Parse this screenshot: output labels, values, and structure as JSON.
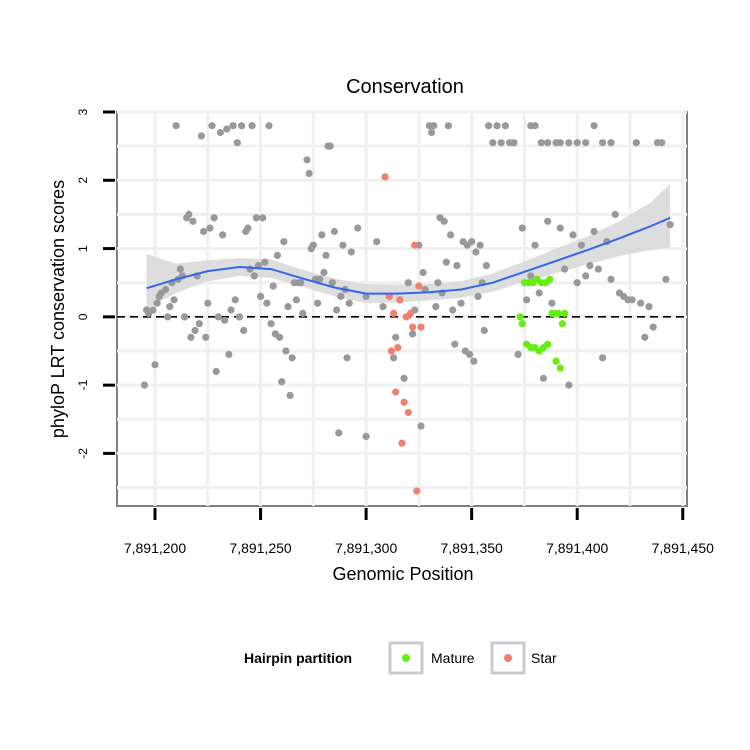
{
  "chart_data": {
    "type": "scatter",
    "title": "Conservation",
    "xlabel": "Genomic Position",
    "ylabel": "phyloP LRT conservation scores",
    "xlim": [
      7891182,
      7891452
    ],
    "ylim": [
      -2.77,
      3.0
    ],
    "x_ticks": [
      7891200,
      7891250,
      7891300,
      7891350,
      7891400,
      7891450
    ],
    "x_tick_labels": [
      "7,891,200",
      "7,891,250",
      "7,891,300",
      "7,891,350",
      "7,891,400",
      "7,891,450"
    ],
    "y_ticks": [
      -2,
      -1,
      0,
      1,
      2,
      3
    ],
    "y_tick_labels": [
      "-2",
      "-1",
      "0",
      "1",
      "2",
      "3"
    ],
    "reference_line": 0,
    "grid": true,
    "legend": {
      "title": "Hairpin partition",
      "placement": "bottom",
      "entries": [
        {
          "label": "Mature",
          "color": "#66ee11"
        },
        {
          "label": "Star",
          "color": "#f08070"
        }
      ]
    },
    "colors": {
      "other": "#999999",
      "mature": "#66ee11",
      "star": "#f08070",
      "smooth": "#3366ee",
      "band": "#d9d9d9"
    },
    "smooth": {
      "x": [
        7891196,
        7891210,
        7891225,
        7891240,
        7891255,
        7891270,
        7891285,
        7891300,
        7891315,
        7891330,
        7891345,
        7891360,
        7891375,
        7891390,
        7891405,
        7891420,
        7891435,
        7891444
      ],
      "y": [
        0.42,
        0.55,
        0.67,
        0.73,
        0.7,
        0.56,
        0.43,
        0.34,
        0.34,
        0.36,
        0.4,
        0.5,
        0.66,
        0.82,
        0.98,
        1.15,
        1.33,
        1.45
      ],
      "lower": [
        0.12,
        0.35,
        0.52,
        0.6,
        0.57,
        0.44,
        0.3,
        0.2,
        0.21,
        0.24,
        0.28,
        0.37,
        0.51,
        0.64,
        0.77,
        0.89,
        0.98,
        1.02
      ],
      "upper": [
        0.92,
        0.78,
        0.83,
        0.86,
        0.84,
        0.69,
        0.56,
        0.48,
        0.47,
        0.48,
        0.52,
        0.64,
        0.81,
        1.0,
        1.18,
        1.4,
        1.68,
        1.95
      ]
    },
    "series": [
      {
        "name": "Other",
        "points": [
          [
            7891195,
            -1.0
          ],
          [
            7891196,
            0.1
          ],
          [
            7891197,
            0.05
          ],
          [
            7891199,
            0.1
          ],
          [
            7891200,
            -0.7
          ],
          [
            7891201,
            0.2
          ],
          [
            7891202,
            0.3
          ],
          [
            7891203,
            0.35
          ],
          [
            7891205,
            0.4
          ],
          [
            7891206,
            0.0
          ],
          [
            7891207,
            0.15
          ],
          [
            7891208,
            0.5
          ],
          [
            7891209,
            0.25
          ],
          [
            7891210,
            2.8
          ],
          [
            7891211,
            0.55
          ],
          [
            7891212,
            0.7
          ],
          [
            7891213,
            0.6
          ],
          [
            7891214,
            0.0
          ],
          [
            7891215,
            1.45
          ],
          [
            7891216,
            1.5
          ],
          [
            7891217,
            -0.3
          ],
          [
            7891218,
            1.4
          ],
          [
            7891219,
            -0.2
          ],
          [
            7891220,
            0.6
          ],
          [
            7891221,
            -0.1
          ],
          [
            7891222,
            2.65
          ],
          [
            7891223,
            1.25
          ],
          [
            7891224,
            -0.3
          ],
          [
            7891225,
            0.2
          ],
          [
            7891226,
            1.3
          ],
          [
            7891227,
            2.8
          ],
          [
            7891228,
            1.45
          ],
          [
            7891229,
            -0.8
          ],
          [
            7891230,
            0.0
          ],
          [
            7891231,
            2.7
          ],
          [
            7891232,
            1.2
          ],
          [
            7891233,
            -0.05
          ],
          [
            7891234,
            2.75
          ],
          [
            7891235,
            -0.55
          ],
          [
            7891236,
            0.1
          ],
          [
            7891237,
            2.8
          ],
          [
            7891238,
            0.25
          ],
          [
            7891239,
            2.55
          ],
          [
            7891240,
            0.0
          ],
          [
            7891241,
            2.8
          ],
          [
            7891242,
            -0.2
          ],
          [
            7891243,
            1.25
          ],
          [
            7891244,
            1.3
          ],
          [
            7891245,
            0.7
          ],
          [
            7891246,
            2.8
          ],
          [
            7891247,
            0.6
          ],
          [
            7891248,
            1.45
          ],
          [
            7891249,
            0.75
          ],
          [
            7891250,
            0.3
          ],
          [
            7891251,
            1.45
          ],
          [
            7891252,
            0.8
          ],
          [
            7891253,
            0.2
          ],
          [
            7891254,
            2.8
          ],
          [
            7891255,
            -0.1
          ],
          [
            7891256,
            0.45
          ],
          [
            7891257,
            -0.25
          ],
          [
            7891258,
            0.9
          ],
          [
            7891259,
            -0.3
          ],
          [
            7891260,
            -0.95
          ],
          [
            7891261,
            1.1
          ],
          [
            7891262,
            -0.5
          ],
          [
            7891263,
            0.15
          ],
          [
            7891264,
            -1.15
          ],
          [
            7891265,
            -0.6
          ],
          [
            7891266,
            0.5
          ],
          [
            7891267,
            0.25
          ],
          [
            7891268,
            0.5
          ],
          [
            7891269,
            0.5
          ],
          [
            7891270,
            0.05
          ],
          [
            7891272,
            2.3
          ],
          [
            7891273,
            2.1
          ],
          [
            7891274,
            1.0
          ],
          [
            7891275,
            1.05
          ],
          [
            7891276,
            0.55
          ],
          [
            7891277,
            0.2
          ],
          [
            7891278,
            0.55
          ],
          [
            7891279,
            1.2
          ],
          [
            7891280,
            0.65
          ],
          [
            7891281,
            0.9
          ],
          [
            7891282,
            2.5
          ],
          [
            7891283,
            2.5
          ],
          [
            7891284,
            0.5
          ],
          [
            7891285,
            1.25
          ],
          [
            7891286,
            0.1
          ],
          [
            7891287,
            -1.7
          ],
          [
            7891288,
            0.3
          ],
          [
            7891289,
            1.05
          ],
          [
            7891290,
            0.4
          ],
          [
            7891291,
            -0.6
          ],
          [
            7891292,
            0.2
          ],
          [
            7891293,
            0.95
          ],
          [
            7891296,
            1.3
          ],
          [
            7891300,
            0.3
          ],
          [
            7891305,
            1.1
          ],
          [
            7891308,
            0.15
          ],
          [
            7891311,
            0.3
          ],
          [
            7891313,
            -0.6
          ],
          [
            7891314,
            -0.3
          ],
          [
            7891316,
            0.25
          ],
          [
            7891318,
            -0.9
          ],
          [
            7891320,
            0.5
          ],
          [
            7891322,
            -0.25
          ],
          [
            7891323,
            0.1
          ],
          [
            7891325,
            1.05
          ],
          [
            7891326,
            -1.6
          ],
          [
            7891327,
            0.65
          ],
          [
            7891328,
            0.4
          ],
          [
            7891330,
            2.8
          ],
          [
            7891331,
            2.7
          ],
          [
            7891332,
            2.8
          ],
          [
            7891333,
            0.15
          ],
          [
            7891334,
            0.5
          ],
          [
            7891335,
            1.45
          ],
          [
            7891336,
            0.35
          ],
          [
            7891337,
            1.4
          ],
          [
            7891338,
            0.8
          ],
          [
            7891339,
            2.8
          ],
          [
            7891340,
            1.2
          ],
          [
            7891341,
            0.1
          ],
          [
            7891342,
            -0.4
          ],
          [
            7891343,
            0.75
          ],
          [
            7891345,
            0.2
          ],
          [
            7891346,
            1.1
          ],
          [
            7891347,
            -0.5
          ],
          [
            7891348,
            1.05
          ],
          [
            7891349,
            -0.55
          ],
          [
            7891350,
            1.1
          ],
          [
            7891351,
            -0.65
          ],
          [
            7891352,
            0.95
          ],
          [
            7891353,
            0.3
          ],
          [
            7891354,
            1.05
          ],
          [
            7891355,
            0.5
          ],
          [
            7891356,
            -0.2
          ],
          [
            7891357,
            0.75
          ],
          [
            7891358,
            2.8
          ],
          [
            7891360,
            2.55
          ],
          [
            7891362,
            2.8
          ],
          [
            7891364,
            2.55
          ],
          [
            7891366,
            2.8
          ],
          [
            7891368,
            2.55
          ],
          [
            7891370,
            2.55
          ],
          [
            7891372,
            -0.55
          ],
          [
            7891374,
            1.3
          ],
          [
            7891376,
            0.25
          ],
          [
            7891378,
            0.6
          ],
          [
            7891380,
            1.05
          ],
          [
            7891382,
            0.35
          ],
          [
            7891384,
            -0.9
          ],
          [
            7891386,
            1.4
          ],
          [
            7891388,
            0.2
          ],
          [
            7891390,
            2.55
          ],
          [
            7891392,
            1.3
          ],
          [
            7891394,
            0.7
          ],
          [
            7891396,
            -1.0
          ],
          [
            7891398,
            1.2
          ],
          [
            7891400,
            0.5
          ],
          [
            7891402,
            1.05
          ],
          [
            7891404,
            0.6
          ],
          [
            7891406,
            0.75
          ],
          [
            7891408,
            1.25
          ],
          [
            7891410,
            0.7
          ],
          [
            7891412,
            -0.6
          ],
          [
            7891414,
            1.1
          ],
          [
            7891416,
            0.55
          ],
          [
            7891418,
            1.5
          ],
          [
            7891420,
            0.35
          ],
          [
            7891422,
            0.3
          ],
          [
            7891424,
            0.25
          ],
          [
            7891426,
            0.25
          ],
          [
            7891428,
            2.55
          ],
          [
            7891430,
            0.2
          ],
          [
            7891432,
            -0.3
          ],
          [
            7891434,
            0.15
          ],
          [
            7891436,
            -0.15
          ],
          [
            7891438,
            2.55
          ],
          [
            7891440,
            2.55
          ],
          [
            7891442,
            0.55
          ],
          [
            7891444,
            1.35
          ],
          [
            7891378,
            2.8
          ],
          [
            7891380,
            2.8
          ],
          [
            7891383,
            2.55
          ],
          [
            7891386,
            2.55
          ],
          [
            7891392,
            2.55
          ],
          [
            7891396,
            2.55
          ],
          [
            7891400,
            2.55
          ],
          [
            7891404,
            2.55
          ],
          [
            7891408,
            2.8
          ],
          [
            7891412,
            2.55
          ],
          [
            7891416,
            2.55
          ],
          [
            7891300,
            -1.75
          ]
        ]
      },
      {
        "name": "Mature",
        "points": [
          [
            7891373,
            0.0
          ],
          [
            7891374,
            -0.1
          ],
          [
            7891375,
            0.5
          ],
          [
            7891376,
            -0.4
          ],
          [
            7891377,
            0.5
          ],
          [
            7891378,
            -0.45
          ],
          [
            7891379,
            0.5
          ],
          [
            7891380,
            -0.45
          ],
          [
            7891381,
            0.55
          ],
          [
            7891382,
            -0.5
          ],
          [
            7891383,
            0.5
          ],
          [
            7891384,
            -0.45
          ],
          [
            7891385,
            0.5
          ],
          [
            7891386,
            -0.4
          ],
          [
            7891387,
            0.55
          ],
          [
            7891388,
            0.05
          ],
          [
            7891389,
            0.05
          ],
          [
            7891390,
            -0.65
          ],
          [
            7891391,
            0.05
          ],
          [
            7891392,
            -0.75
          ],
          [
            7891393,
            -0.1
          ],
          [
            7891394,
            0.05
          ]
        ]
      },
      {
        "name": "Star",
        "points": [
          [
            7891309,
            2.05
          ],
          [
            7891311,
            0.3
          ],
          [
            7891312,
            -0.5
          ],
          [
            7891313,
            0.05
          ],
          [
            7891314,
            -1.1
          ],
          [
            7891315,
            -0.45
          ],
          [
            7891316,
            0.25
          ],
          [
            7891317,
            -1.85
          ],
          [
            7891318,
            -1.25
          ],
          [
            7891319,
            0.0
          ],
          [
            7891320,
            -1.4
          ],
          [
            7891321,
            0.05
          ],
          [
            7891322,
            -0.15
          ],
          [
            7891323,
            1.05
          ],
          [
            7891324,
            -2.55
          ],
          [
            7891325,
            0.45
          ],
          [
            7891326,
            -0.15
          ]
        ]
      }
    ]
  }
}
